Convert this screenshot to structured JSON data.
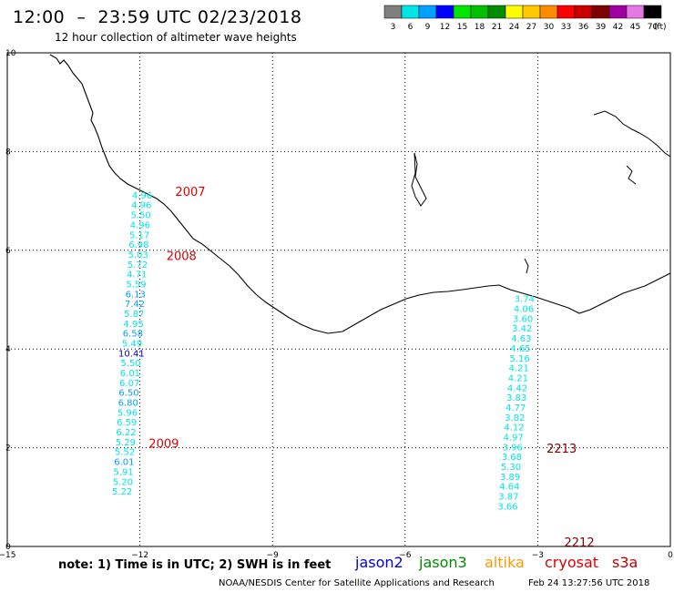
{
  "header": {
    "title": "12:00  –  23:59 UTC 02/23/2018",
    "subtitle": "12 hour collection of altimeter wave heights"
  },
  "legend": {
    "unit": "(ft)",
    "bins": [
      {
        "label": "3",
        "color": "#7f7f7f"
      },
      {
        "label": "6",
        "color": "#00e6e6"
      },
      {
        "label": "9",
        "color": "#00a0ff"
      },
      {
        "label": "12",
        "color": "#0000ff"
      },
      {
        "label": "15",
        "color": "#00e600"
      },
      {
        "label": "18",
        "color": "#00c000"
      },
      {
        "label": "21",
        "color": "#008c00"
      },
      {
        "label": "24",
        "color": "#ffff00"
      },
      {
        "label": "27",
        "color": "#ffc800"
      },
      {
        "label": "30",
        "color": "#ff8c00"
      },
      {
        "label": "33",
        "color": "#ff0000"
      },
      {
        "label": "36",
        "color": "#c80000"
      },
      {
        "label": "39",
        "color": "#800000"
      },
      {
        "label": "42",
        "color": "#a000a0"
      },
      {
        "label": "45",
        "color": "#e678e6"
      },
      {
        "label": "70",
        "color": "#000000"
      }
    ]
  },
  "axes": {
    "x_ticks": [
      "−15",
      "−12",
      "−9",
      "−6",
      "−3",
      "0"
    ],
    "y_ticks": [
      "0",
      "2",
      "4",
      "6",
      "8",
      "10"
    ]
  },
  "tracks": [
    {
      "lon": -11.95,
      "lat_start": 7.05,
      "lat_step": -0.2,
      "values": [
        "4.96",
        "4.96",
        "5.50",
        "4.96",
        "5.17",
        "6.98",
        "5.03",
        "5.72",
        "4.71",
        "5.59",
        "6.13",
        "7.42",
        "5.87",
        "4.95",
        "6.58",
        "5.49",
        "10.41",
        "5.50",
        "6.01",
        "6.07",
        "6.50",
        "6.80",
        "5.96",
        "6.59",
        "6.22",
        "5.29",
        "5.52",
        "6.01",
        "5.91",
        "5.20",
        "5.22"
      ],
      "colors": [
        "#00e6e6",
        "#00e6e6",
        "#00e6e6",
        "#00e6e6",
        "#00e6e6",
        "#00e6e6",
        "#00e6e6",
        "#00e6e6",
        "#00e6e6",
        "#00e6e6",
        "#00a0ff",
        "#00a0ff",
        "#00e6e6",
        "#00e6e6",
        "#00a0ff",
        "#00e6e6",
        "#0000c8",
        "#00e6e6",
        "#00e6e6",
        "#00e6e6",
        "#00a0ff",
        "#00a0ff",
        "#00e6e6",
        "#00e6e6",
        "#00e6e6",
        "#00e6e6",
        "#00e6e6",
        "#00a0ff",
        "#00e6e6",
        "#00e6e6",
        "#00e6e6"
      ]
    },
    {
      "lon": -3.3,
      "lat_start": 4.95,
      "lat_step": -0.2,
      "values": [
        "3.74",
        "4.06",
        "3.60",
        "3.42",
        "4.63",
        "4.65",
        "5.16",
        "4.21",
        "4.21",
        "4.42",
        "3.83",
        "4.77",
        "3.82",
        "4.12",
        "4.97",
        "3.96",
        "3.68",
        "5.30",
        "3.89",
        "4.64",
        "3.87",
        "3.66"
      ],
      "colors": [
        "#00e6e6",
        "#00e6e6",
        "#00e6e6",
        "#00e6e6",
        "#00e6e6",
        "#00e6e6",
        "#00e6e6",
        "#00e6e6",
        "#00e6e6",
        "#00e6e6",
        "#00e6e6",
        "#00e6e6",
        "#00e6e6",
        "#00e6e6",
        "#00e6e6",
        "#00e6e6",
        "#00e6e6",
        "#00e6e6",
        "#00e6e6",
        "#00e6e6",
        "#00e6e6",
        "#00e6e6"
      ]
    }
  ],
  "time_labels": [
    {
      "text": "2007",
      "lon": -11.2,
      "lat": 7.1,
      "color": "#e00000"
    },
    {
      "text": "2008",
      "lon": -11.4,
      "lat": 5.8,
      "color": "#e00000"
    },
    {
      "text": "2009",
      "lon": -11.8,
      "lat": 2.0,
      "color": "#e00000"
    },
    {
      "text": "2213",
      "lon": -2.8,
      "lat": 1.9,
      "color": "#800000"
    },
    {
      "text": "2212",
      "lon": -2.4,
      "lat": 0.0,
      "color": "#800000"
    }
  ],
  "footer": {
    "note": "note:  1) Time is in UTC;  2) SWH is in feet",
    "satellites": [
      {
        "name": "jason2",
        "color": "#0000e0"
      },
      {
        "name": "jason3",
        "color": "#008c00"
      },
      {
        "name": "altika",
        "color": "#ff9900"
      },
      {
        "name": "cryosat",
        "color": "#e00000"
      },
      {
        "name": "s3a",
        "color": "#c00000"
      }
    ],
    "credit": "NOAA/NESDIS Center for Satellite Applications and Research",
    "timestamp": "Feb 24 13:27:56 UTC 2018"
  }
}
